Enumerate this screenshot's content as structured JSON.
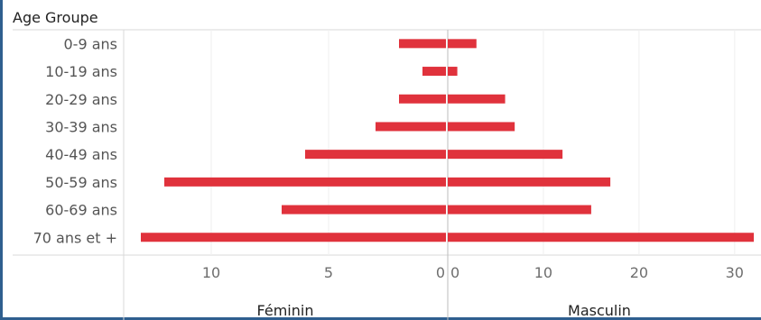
{
  "chart_data": {
    "type": "bar",
    "header": "Age Groupe",
    "categories": [
      "0-9 ans",
      "10-19 ans",
      "20-29 ans",
      "30-39 ans",
      "40-49 ans",
      "50-59 ans",
      "60-69 ans",
      "70 ans et +"
    ],
    "series": [
      {
        "name": "Féminin",
        "values": [
          2,
          1,
          2,
          3,
          6,
          12,
          7,
          13
        ],
        "xlim": [
          13.5,
          0
        ],
        "ticks": [
          10,
          5,
          0
        ]
      },
      {
        "name": "Masculin",
        "values": [
          3,
          1,
          6,
          7,
          12,
          17,
          15,
          32
        ],
        "xlim": [
          0,
          32
        ],
        "ticks": [
          0,
          10,
          20,
          30
        ]
      }
    ],
    "bar_color": "#e0323c",
    "grid": true
  }
}
